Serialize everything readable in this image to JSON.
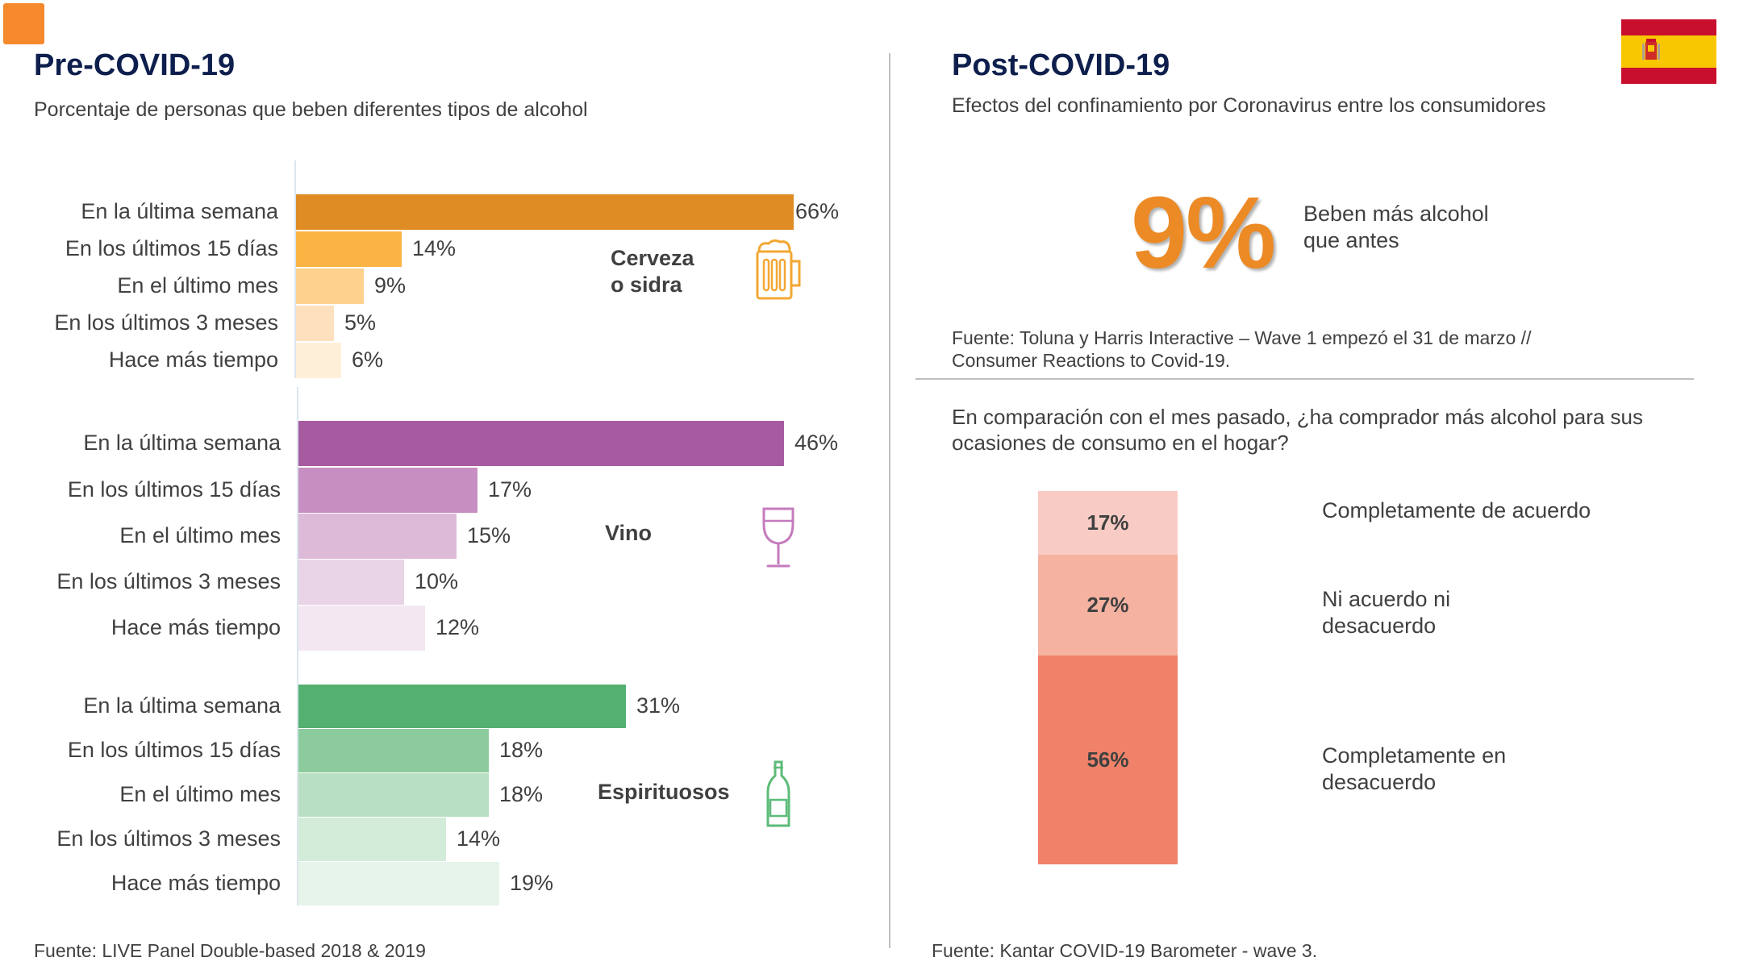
{
  "left_panel": {
    "title": "Pre-COVID-19",
    "subtitle": "Porcentaje de personas que beben diferentes tipos de alcohol",
    "source": "Fuente: LIVE Panel Double-based 2018 & 2019"
  },
  "right_panel": {
    "title": "Post-COVID-19",
    "subtitle": "Efectos del confinamiento por Coronavirus entre los consumidores",
    "big_stat": {
      "value": "9%",
      "label_line1": "Beben más alcohol",
      "label_line2": "que antes"
    },
    "source1_line1": "Fuente: Toluna y Harris Interactive – Wave 1 empezó el 31 de marzo //",
    "source1_line2": "Consumer Reactions to Covid-19.",
    "question_line1": "En comparación con el mes pasado, ¿ha comprador más alcohol para sus",
    "question_line2": "ocasiones de consumo en el hogar?",
    "source2": "Fuente: Kantar COVID-19 Barometer - wave 3."
  },
  "icons": {
    "beer": "beer-mug-icon",
    "wine": "wine-glass-icon",
    "spirits": "bottle-icon",
    "flag": "spain-flag-icon"
  },
  "chart_data": [
    {
      "type": "bar",
      "orientation": "horizontal",
      "group": "Cerveza o sidra",
      "group_line1": "Cerveza",
      "group_line2": "o sidra",
      "categories": [
        "En la última semana",
        "En los últimos 15 días",
        "En el último mes",
        "En los últimos 3 meses",
        "Hace más tiempo"
      ],
      "values": [
        66,
        14,
        9,
        5,
        6
      ],
      "labels": [
        "66%",
        "14%",
        "9%",
        "5%",
        "6%"
      ],
      "colors": [
        "#df8c24",
        "#fbb444",
        "#fdd18e",
        "#fde0bd",
        "#feefd9"
      ],
      "xlim": [
        0,
        66
      ]
    },
    {
      "type": "bar",
      "orientation": "horizontal",
      "group": "Vino",
      "categories": [
        "En la última semana",
        "En los últimos 15 días",
        "En el último mes",
        "En los últimos 3 meses",
        "Hace más tiempo"
      ],
      "values": [
        46,
        17,
        15,
        10,
        12
      ],
      "labels": [
        "46%",
        "17%",
        "15%",
        "10%",
        "12%"
      ],
      "colors": [
        "#a65ba1",
        "#c78fc1",
        "#dcbad8",
        "#e9d3e6",
        "#f3e8f2"
      ],
      "xlim": [
        0,
        46
      ]
    },
    {
      "type": "bar",
      "orientation": "horizontal",
      "group": "Espirituosos",
      "categories": [
        "En la última semana",
        "En los últimos 15 días",
        "En el último mes",
        "En los últimos 3 meses",
        "Hace más tiempo"
      ],
      "values": [
        31,
        18,
        18,
        14,
        19
      ],
      "labels": [
        "31%",
        "18%",
        "18%",
        "14%",
        "19%"
      ],
      "colors": [
        "#53b071",
        "#8ccb9b",
        "#b8dfc2",
        "#d3ebd9",
        "#e6f4ea"
      ],
      "xlim": [
        0,
        31
      ]
    },
    {
      "type": "bar",
      "orientation": "stacked-vertical",
      "categories": [
        "Completamente de acuerdo",
        "Ni acuerdo ni desacuerdo",
        "Completamente en desacuerdo"
      ],
      "values": [
        17,
        27,
        56
      ],
      "labels": [
        "17%",
        "27%",
        "56%"
      ],
      "colors": [
        "#f8ccc4",
        "#f5b2a1",
        "#f0826a"
      ],
      "legend_lines": [
        [
          "Completamente de acuerdo"
        ],
        [
          "Ni acuerdo ni",
          "desacuerdo"
        ],
        [
          "Completamente en",
          "desacuerdo"
        ]
      ]
    }
  ]
}
